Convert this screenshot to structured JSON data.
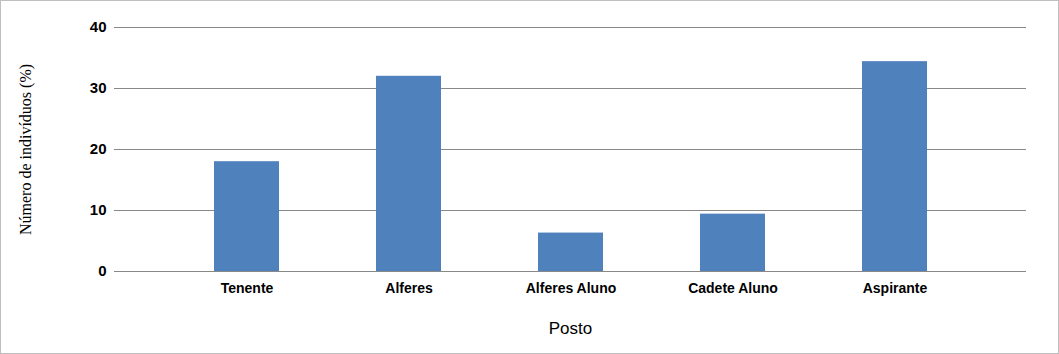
{
  "chart_data": {
    "type": "bar",
    "x_label": "Posto",
    "y_label": "Número de indivíduos (%)",
    "categories": [
      "Tenente",
      "Alferes",
      "Alferes Aluno",
      "Cadete Aluno",
      "Aspirante"
    ],
    "values": [
      18,
      32,
      6.3,
      9.4,
      34.4
    ],
    "color": "#4f81bd",
    "ylim": [
      0,
      40
    ],
    "yticks": [
      0,
      10,
      20,
      30,
      40
    ],
    "grid": true
  }
}
